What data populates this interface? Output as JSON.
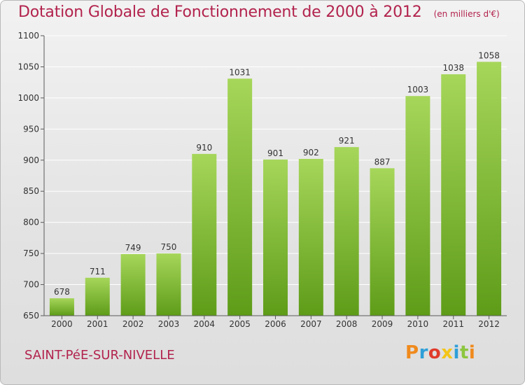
{
  "header": {
    "title": "Dotation Globale de Fonctionnement de 2000 à 2012",
    "unit": "(en milliers d'€)"
  },
  "footer": {
    "city": "SAINT-PéE-SUR-NIVELLE",
    "brand": "Proxiti",
    "brand_colors": [
      "#f08a1c",
      "#2f9fd8",
      "#e03a2a",
      "#f4c518",
      "#2f9fd8",
      "#8cc63f",
      "#f08a1c"
    ]
  },
  "colors": {
    "bar_top": "#a6d65a",
    "bar_bottom": "#5e9c18",
    "axis": "#5a5a5a",
    "grid": "#ffffff",
    "title": "#b2234d"
  },
  "chart_data": {
    "type": "bar",
    "title": "Dotation Globale de Fonctionnement de 2000 à 2012",
    "subtitle": "(en milliers d'€)",
    "categories": [
      "2000",
      "2001",
      "2002",
      "2003",
      "2004",
      "2005",
      "2006",
      "2007",
      "2008",
      "2009",
      "2010",
      "2011",
      "2012"
    ],
    "values": [
      678,
      711,
      749,
      750,
      910,
      1031,
      901,
      902,
      921,
      887,
      1003,
      1038,
      1058
    ],
    "ylim": [
      650,
      1100
    ],
    "yticks": [
      650,
      700,
      750,
      800,
      850,
      900,
      950,
      1000,
      1050,
      1100
    ],
    "grid": true,
    "xlabel": "",
    "ylabel": ""
  }
}
